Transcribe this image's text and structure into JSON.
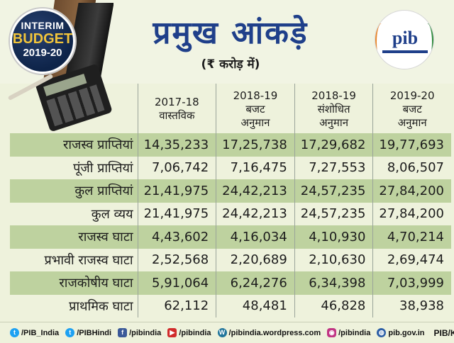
{
  "badge": {
    "line1": "INTERIM",
    "line2": "BUDGET",
    "line3": "2019-20"
  },
  "title": "प्रमुख आंकड़े",
  "unit_note": "(₹ करोड़ में)",
  "logo": {
    "text": "pib"
  },
  "table": {
    "columns": [
      {
        "year": "2017-18",
        "type": "वास्तविक"
      },
      {
        "year": "2018-19",
        "type": "बजट",
        "type2": "अनुमान"
      },
      {
        "year": "2018-19",
        "type": "संशोधित",
        "type2": "अनुमान"
      },
      {
        "year": "2019-20",
        "type": "बजट",
        "type2": "अनुमान"
      }
    ],
    "rows": [
      {
        "label": "राजस्व प्राप्तियां",
        "values": [
          "14,35,233",
          "17,25,738",
          "17,29,682",
          "19,77,693"
        ]
      },
      {
        "label": "पूंजी प्राप्तियां",
        "values": [
          "7,06,742",
          "7,16,475",
          "7,27,553",
          "8,06,507"
        ]
      },
      {
        "label": "कुल प्राप्तियां",
        "values": [
          "21,41,975",
          "24,42,213",
          "24,57,235",
          "27,84,200"
        ]
      },
      {
        "label": "कुल व्यय",
        "values": [
          "21,41,975",
          "24,42,213",
          "24,57,235",
          "27,84,200"
        ]
      },
      {
        "label": "राजस्व घाटा",
        "values": [
          "4,43,602",
          "4,16,034",
          "4,10,930",
          "4,70,214"
        ]
      },
      {
        "label": "प्रभावी राजस्व घाटा",
        "values": [
          "2,52,568",
          "2,20,689",
          "2,10,630",
          "2,69,474"
        ]
      },
      {
        "label": "राजकोषीय घाटा",
        "values": [
          "5,91,064",
          "6,24,276",
          "6,34,398",
          "7,03,999"
        ]
      },
      {
        "label": "प्राथमिक घाटा",
        "values": [
          "62,112",
          "48,481",
          "46,828",
          "38,938"
        ]
      }
    ]
  },
  "footer": {
    "items": [
      {
        "icon": "twitter-icon",
        "text": "/PIB_India"
      },
      {
        "icon": "twitter-icon",
        "text": "/PIBHindi"
      },
      {
        "icon": "facebook-icon",
        "text": "/pibindia"
      },
      {
        "icon": "youtube-icon",
        "text": "/pibindia"
      },
      {
        "icon": "wordpress-icon",
        "text": "/pibindia.wordpress.com"
      },
      {
        "icon": "instagram-icon",
        "text": "/pibindia"
      },
      {
        "icon": "globe-icon",
        "text": "pib.gov.in"
      }
    ],
    "credit": "PIB/KBK"
  },
  "colors": {
    "title": "#1f3f8a",
    "row_band": "#bed29f",
    "background": "#eef2dc"
  }
}
